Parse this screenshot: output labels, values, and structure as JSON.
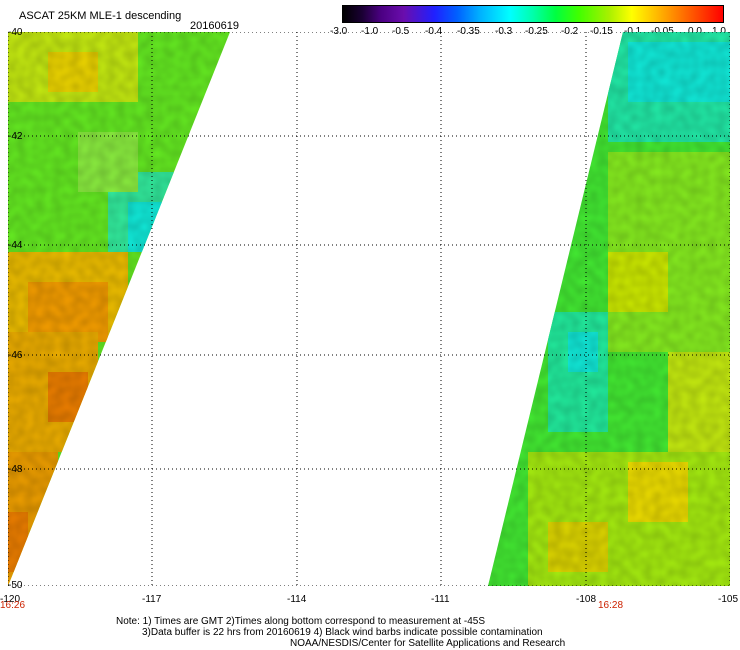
{
  "header": {
    "title": "ASCAT 25KM MLE-1 descending",
    "date": "20160619"
  },
  "colorbar": {
    "ticks": [
      "-3.0",
      "-1.0",
      "-0.5",
      "-0.4",
      "-0.35",
      "-0.3",
      "-0.25",
      "-0.2",
      "-0.15",
      "-0.1",
      "-0.05",
      "0.0",
      "1.0"
    ]
  },
  "axes": {
    "lat_ticks": [
      "-40",
      "-42",
      "-44",
      "-46",
      "-48",
      "-50"
    ],
    "lon_ticks": [
      "-120",
      "-117",
      "-114",
      "-111",
      "-108",
      "-105"
    ]
  },
  "times": [
    "16:26",
    "16:28"
  ],
  "notes": {
    "line1": "Note: 1) Times are GMT 2)Times along bottom correspond to measurement at -45S",
    "line2": "3)Data buffer is 22 hrs from 20160619 4) Black wind barbs indicate possible contamination",
    "line3": "NOAA/NESDIS/Center for Satellite Applications and Research"
  }
}
